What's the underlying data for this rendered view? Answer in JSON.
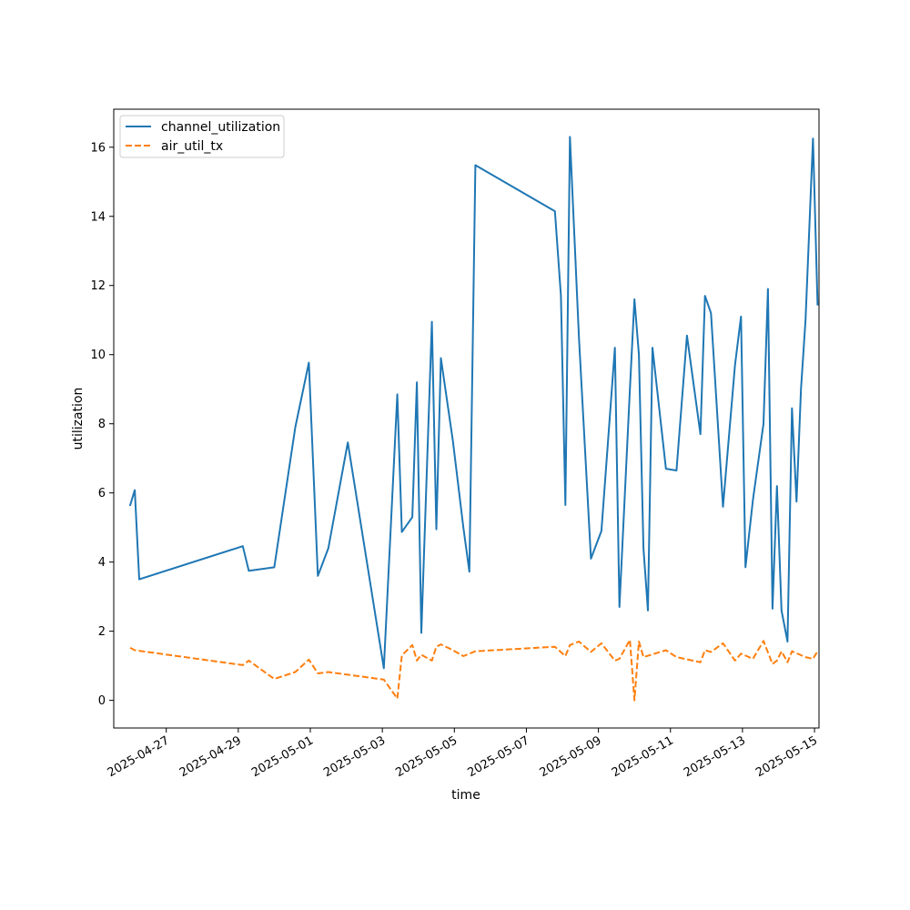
{
  "chart_data": {
    "type": "line",
    "title": "",
    "xlabel": "time",
    "ylabel": "utilization",
    "x_ticks": [
      "2025-04-27",
      "2025-04-29",
      "2025-05-01",
      "2025-05-03",
      "2025-05-05",
      "2025-05-07",
      "2025-05-09",
      "2025-05-11",
      "2025-05-13",
      "2025-05-15"
    ],
    "y_ticks": [
      0,
      2,
      4,
      6,
      8,
      10,
      12,
      14,
      16
    ],
    "xlim": [
      "2025-04-25T13:00",
      "2025-05-15T03:00"
    ],
    "ylim": [
      -0.8,
      17.1
    ],
    "grid": false,
    "legend_position": "top-left",
    "series": [
      {
        "name": "channel_utilization",
        "color": "#1f77b4",
        "style": "solid",
        "points": [
          [
            "2025-04-26T00:00",
            5.65
          ],
          [
            "2025-04-26T03:00",
            6.08
          ],
          [
            "2025-04-26T06:00",
            3.5
          ],
          [
            "2025-04-29T03:00",
            4.46
          ],
          [
            "2025-04-29T07:00",
            3.75
          ],
          [
            "2025-04-30T00:00",
            3.85
          ],
          [
            "2025-04-30T14:00",
            7.9
          ],
          [
            "2025-04-30T23:00",
            9.77
          ],
          [
            "2025-05-01T05:00",
            3.6
          ],
          [
            "2025-05-01T12:00",
            4.4
          ],
          [
            "2025-05-02T01:00",
            7.46
          ],
          [
            "2025-05-03T01:00",
            0.93
          ],
          [
            "2025-05-03T10:00",
            8.85
          ],
          [
            "2025-05-03T13:00",
            4.87
          ],
          [
            "2025-05-03T20:00",
            5.3
          ],
          [
            "2025-05-03T23:00",
            9.2
          ],
          [
            "2025-05-04T02:00",
            1.95
          ],
          [
            "2025-05-04T09:00",
            10.95
          ],
          [
            "2025-05-04T12:00",
            4.95
          ],
          [
            "2025-05-04T15:00",
            9.9
          ],
          [
            "2025-05-04T23:00",
            7.5
          ],
          [
            "2025-05-05T06:00",
            5.0
          ],
          [
            "2025-05-05T10:00",
            3.72
          ],
          [
            "2025-05-05T14:00",
            15.48
          ],
          [
            "2025-05-07T19:00",
            14.15
          ],
          [
            "2025-05-07T23:00",
            11.7
          ],
          [
            "2025-05-08T02:00",
            5.65
          ],
          [
            "2025-05-08T05:00",
            16.3
          ],
          [
            "2025-05-08T11:00",
            10.5
          ],
          [
            "2025-05-08T19:00",
            4.1
          ],
          [
            "2025-05-09T02:00",
            4.9
          ],
          [
            "2025-05-09T11:00",
            10.2
          ],
          [
            "2025-05-09T14:00",
            2.7
          ],
          [
            "2025-05-09T21:00",
            9.0
          ],
          [
            "2025-05-10T00:00",
            11.6
          ],
          [
            "2025-05-10T03:00",
            10.0
          ],
          [
            "2025-05-10T06:00",
            4.4
          ],
          [
            "2025-05-10T09:00",
            2.6
          ],
          [
            "2025-05-10T12:00",
            10.2
          ],
          [
            "2025-05-10T21:00",
            6.7
          ],
          [
            "2025-05-11T04:00",
            6.65
          ],
          [
            "2025-05-11T11:00",
            10.55
          ],
          [
            "2025-05-11T20:00",
            7.7
          ],
          [
            "2025-05-11T23:00",
            11.7
          ],
          [
            "2025-05-12T03:00",
            11.2
          ],
          [
            "2025-05-12T11:00",
            5.6
          ],
          [
            "2025-05-12T19:00",
            9.7
          ],
          [
            "2025-05-12T23:00",
            11.1
          ],
          [
            "2025-05-13T02:00",
            3.85
          ],
          [
            "2025-05-13T07:00",
            5.8
          ],
          [
            "2025-05-13T14:00",
            8.0
          ],
          [
            "2025-05-13T17:00",
            11.9
          ],
          [
            "2025-05-13T20:00",
            2.65
          ],
          [
            "2025-05-13T23:00",
            6.2
          ],
          [
            "2025-05-14T02:00",
            2.6
          ],
          [
            "2025-05-14T06:00",
            1.7
          ],
          [
            "2025-05-14T09:00",
            8.45
          ],
          [
            "2025-05-14T12:00",
            5.75
          ],
          [
            "2025-05-14T15:00",
            9.0
          ],
          [
            "2025-05-14T18:00",
            11.0
          ],
          [
            "2025-05-14T23:00",
            16.25
          ],
          [
            "2025-05-15T02:00",
            11.45
          ]
        ]
      },
      {
        "name": "air_util_tx",
        "color": "#ff7f0e",
        "style": "dashed",
        "points": [
          [
            "2025-04-26T00:00",
            1.52
          ],
          [
            "2025-04-26T03:00",
            1.45
          ],
          [
            "2025-04-29T03:00",
            1.02
          ],
          [
            "2025-04-29T07:00",
            1.15
          ],
          [
            "2025-04-30T00:00",
            0.62
          ],
          [
            "2025-04-30T14:00",
            0.82
          ],
          [
            "2025-04-30T23:00",
            1.18
          ],
          [
            "2025-05-01T05:00",
            0.78
          ],
          [
            "2025-05-01T12:00",
            0.82
          ],
          [
            "2025-05-03T01:00",
            0.6
          ],
          [
            "2025-05-03T10:00",
            0.05
          ],
          [
            "2025-05-03T13:00",
            1.3
          ],
          [
            "2025-05-03T20:00",
            1.6
          ],
          [
            "2025-05-03T23:00",
            1.15
          ],
          [
            "2025-05-04T02:00",
            1.32
          ],
          [
            "2025-05-04T09:00",
            1.15
          ],
          [
            "2025-05-04T12:00",
            1.55
          ],
          [
            "2025-05-04T15:00",
            1.62
          ],
          [
            "2025-05-04T23:00",
            1.45
          ],
          [
            "2025-05-05T06:00",
            1.28
          ],
          [
            "2025-05-05T14:00",
            1.42
          ],
          [
            "2025-05-07T19:00",
            1.55
          ],
          [
            "2025-05-08T02:00",
            1.28
          ],
          [
            "2025-05-08T05:00",
            1.6
          ],
          [
            "2025-05-08T11:00",
            1.7
          ],
          [
            "2025-05-08T19:00",
            1.4
          ],
          [
            "2025-05-09T02:00",
            1.65
          ],
          [
            "2025-05-09T11:00",
            1.15
          ],
          [
            "2025-05-09T14:00",
            1.2
          ],
          [
            "2025-05-09T21:00",
            1.75
          ],
          [
            "2025-05-10T00:00",
            0.0
          ],
          [
            "2025-05-10T03:00",
            1.7
          ],
          [
            "2025-05-10T06:00",
            1.25
          ],
          [
            "2025-05-10T21:00",
            1.45
          ],
          [
            "2025-05-11T04:00",
            1.25
          ],
          [
            "2025-05-11T20:00",
            1.1
          ],
          [
            "2025-05-11T23:00",
            1.45
          ],
          [
            "2025-05-12T03:00",
            1.4
          ],
          [
            "2025-05-12T11:00",
            1.65
          ],
          [
            "2025-05-12T19:00",
            1.15
          ],
          [
            "2025-05-12T23:00",
            1.35
          ],
          [
            "2025-05-13T07:00",
            1.2
          ],
          [
            "2025-05-13T14:00",
            1.72
          ],
          [
            "2025-05-13T20:00",
            1.05
          ],
          [
            "2025-05-13T23:00",
            1.15
          ],
          [
            "2025-05-14T02:00",
            1.42
          ],
          [
            "2025-05-14T06:00",
            1.1
          ],
          [
            "2025-05-14T09:00",
            1.42
          ],
          [
            "2025-05-14T18:00",
            1.25
          ],
          [
            "2025-05-14T23:00",
            1.2
          ],
          [
            "2025-05-15T02:00",
            1.42
          ]
        ]
      }
    ]
  }
}
